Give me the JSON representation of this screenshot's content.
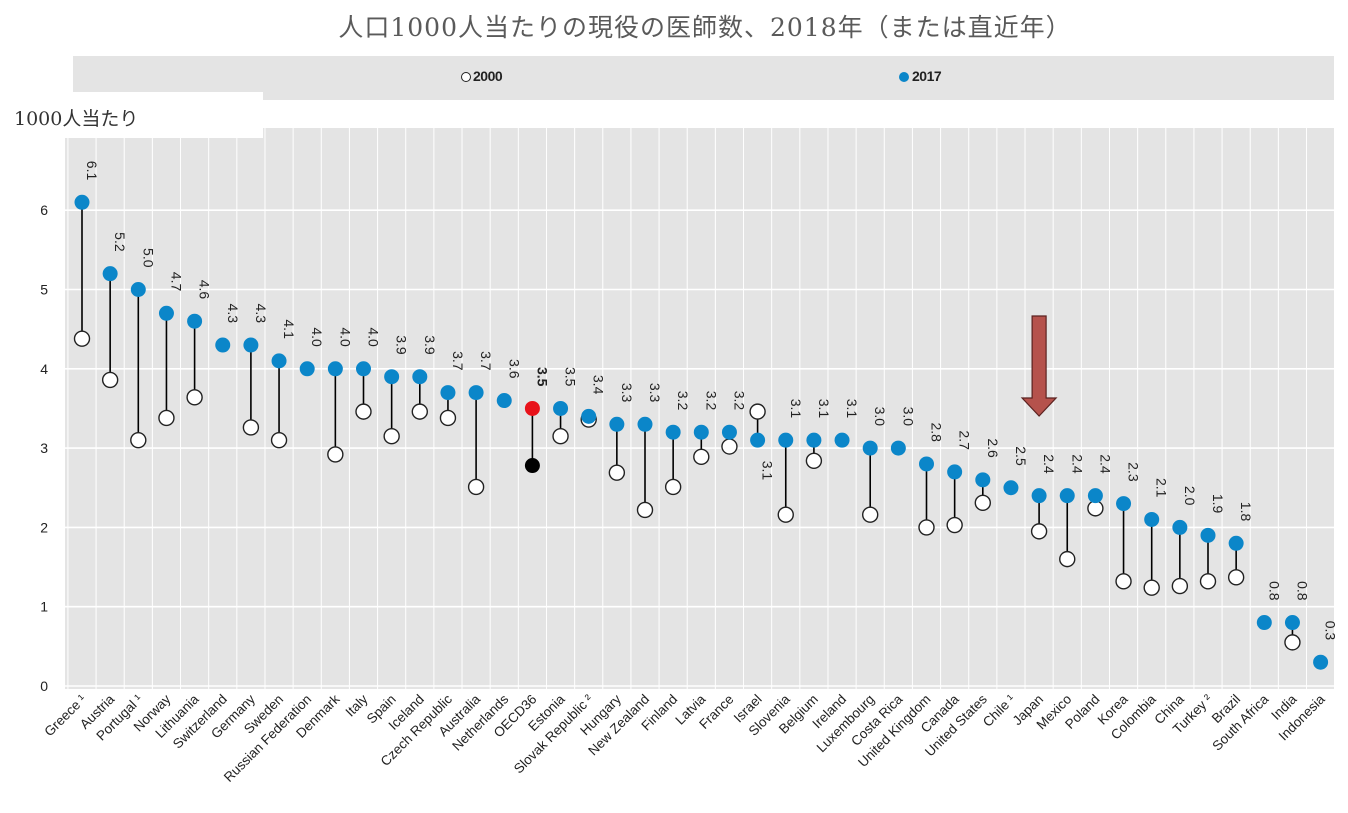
{
  "title": "人口1000人当たりの現役の医師数、2018年（または直近年）",
  "unit_label": "1000人当たり",
  "legend": {
    "series_2000": "2000",
    "series_2017": "2017"
  },
  "colors": {
    "series_2017": "#0b86c9",
    "oecd_highlight": "#e8121a",
    "oecd_2000": "#000000",
    "plot_background": "#e4e4e4",
    "arrow": "#b5524c"
  },
  "annotation": {
    "type": "arrow",
    "points_to": "Japan",
    "direction": "down"
  },
  "chart_data": {
    "type": "scatter",
    "subtype": "dot-range (2000 vs 2017)",
    "ylim": [
      0,
      7
    ],
    "yticks": [
      0,
      1,
      2,
      3,
      4,
      5,
      6
    ],
    "grid": true,
    "legend_position": "top",
    "categories": [
      "Greece ¹",
      "Austria",
      "Portugal ¹",
      "Norway",
      "Lithuania",
      "Switzerland",
      "Germany",
      "Sweden",
      "Russian Federation",
      "Denmark",
      "Italy",
      "Spain",
      "Iceland",
      "Czech Republic",
      "Australia",
      "Netherlands",
      "OECD36",
      "Estonia",
      "Slovak Republic ²",
      "Hungary",
      "New Zealand",
      "Finland",
      "Latvia",
      "France",
      "Israel",
      "Slovenia",
      "Belgium",
      "Ireland",
      "Luxembourg",
      "Costa Rica",
      "United Kingdom",
      "Canada",
      "United States",
      "Chile ¹",
      "Japan",
      "Mexico",
      "Poland",
      "Korea",
      "Colombia",
      "China",
      "Turkey ²",
      "Brazil",
      "South Africa",
      "India",
      "Indonesia"
    ],
    "series": [
      {
        "name": "2017",
        "values": [
          6.1,
          5.2,
          5.0,
          4.7,
          4.6,
          4.3,
          4.3,
          4.1,
          4.0,
          4.0,
          4.0,
          3.9,
          3.9,
          3.7,
          3.7,
          3.6,
          3.5,
          3.5,
          3.4,
          3.3,
          3.3,
          3.2,
          3.2,
          3.2,
          3.1,
          3.1,
          3.1,
          3.1,
          3.0,
          3.0,
          2.8,
          2.7,
          2.6,
          2.5,
          2.4,
          2.4,
          2.4,
          2.3,
          2.1,
          2.0,
          1.9,
          1.8,
          0.8,
          0.8,
          0.3
        ],
        "labels": [
          "6.1",
          "5.2",
          "5.0",
          "4.7",
          "4.6",
          "4.3",
          "4.3",
          "4.1",
          "4.0",
          "4.0",
          "4.0",
          "3.9",
          "3.9",
          "3.7",
          "3.7",
          "3.6",
          "3.5",
          "3.5",
          "3.4",
          "3.3",
          "3.3",
          "3.2",
          "3.2",
          "3.2",
          "3.1",
          "3.1",
          "3.1",
          "3.1",
          "3.0",
          "3.0",
          "2.8",
          "2.7",
          "2.6",
          "2.5",
          "2.4",
          "2.4",
          "2.4",
          "2.3",
          "2.1",
          "2.0",
          "1.9",
          "1.8",
          "0.8",
          "0.8",
          "0.3"
        ]
      },
      {
        "name": "2000",
        "values": [
          4.38,
          3.86,
          3.1,
          3.38,
          3.64,
          null,
          3.26,
          3.1,
          null,
          2.92,
          3.46,
          3.15,
          3.46,
          3.38,
          2.51,
          null,
          2.78,
          3.15,
          3.36,
          2.69,
          2.22,
          2.51,
          2.89,
          3.02,
          3.46,
          2.16,
          2.84,
          null,
          2.16,
          null,
          2.0,
          2.03,
          2.31,
          null,
          1.95,
          1.6,
          2.24,
          1.32,
          1.24,
          1.26,
          1.32,
          1.37,
          null,
          0.55,
          null
        ]
      }
    ]
  }
}
